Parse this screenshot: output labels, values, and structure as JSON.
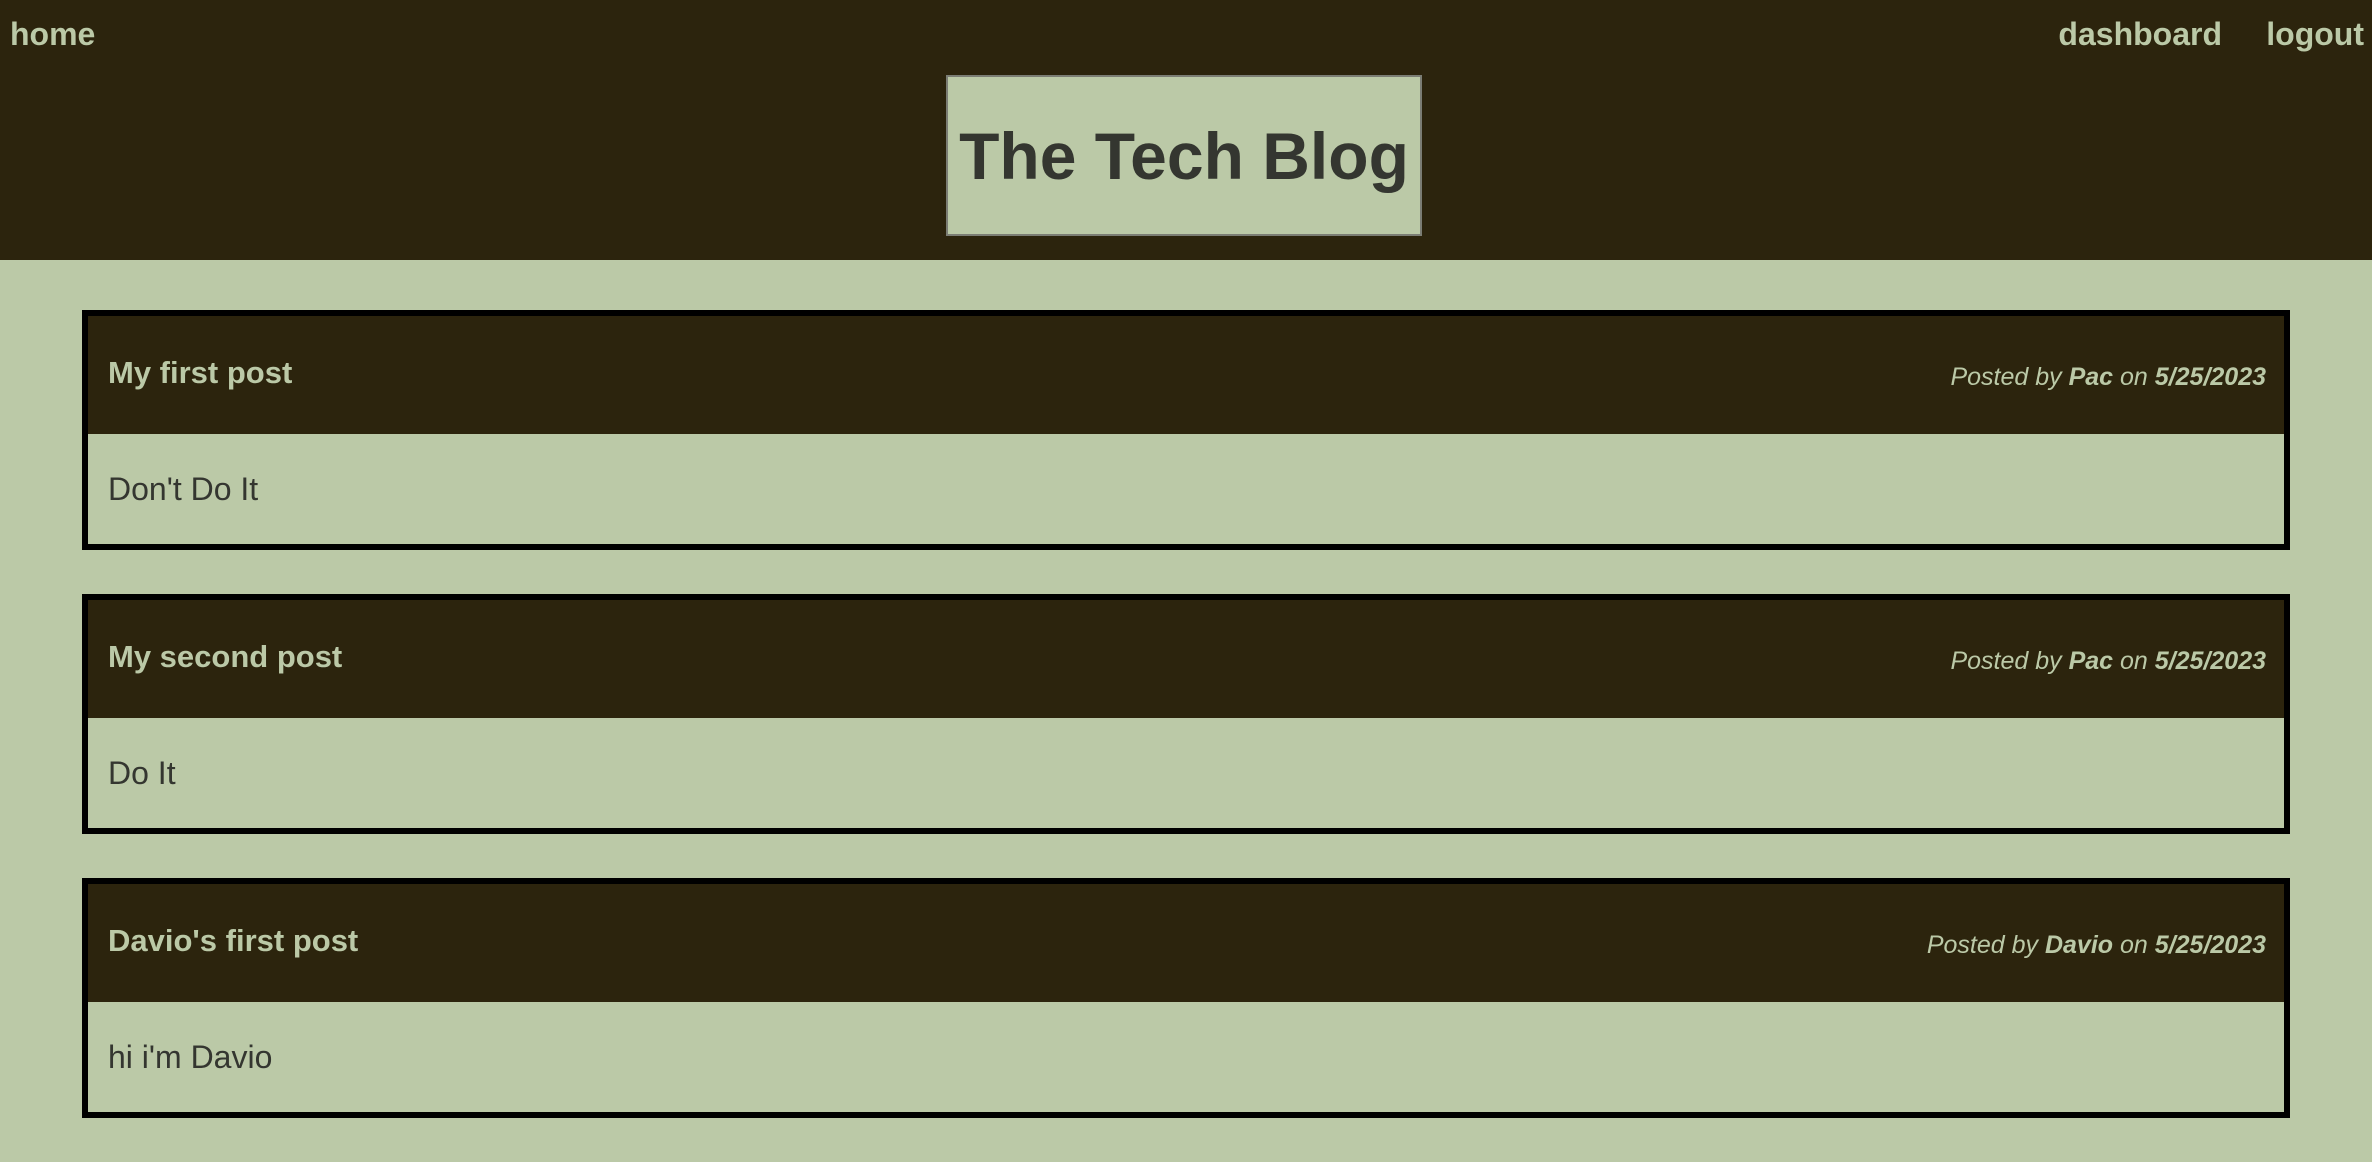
{
  "nav": {
    "home": "home",
    "dashboard": "dashboard",
    "logout": "logout"
  },
  "header": {
    "title": "The Tech Blog"
  },
  "posts": [
    {
      "title": "My first post",
      "posted_by_label": "Posted by",
      "author": "Pac",
      "on_label": "on",
      "date": "5/25/2023",
      "content": "Don't Do It"
    },
    {
      "title": "My second post",
      "posted_by_label": "Posted by",
      "author": "Pac",
      "on_label": "on",
      "date": "5/25/2023",
      "content": "Do It"
    },
    {
      "title": "Davio's first post",
      "posted_by_label": "Posted by",
      "author": "Davio",
      "on_label": "on",
      "date": "5/25/2023",
      "content": "hi i'm Davio"
    }
  ],
  "colors": {
    "header_bg": "#2c240d",
    "page_bg": "#bbc9a7",
    "text_dark": "#343630"
  }
}
